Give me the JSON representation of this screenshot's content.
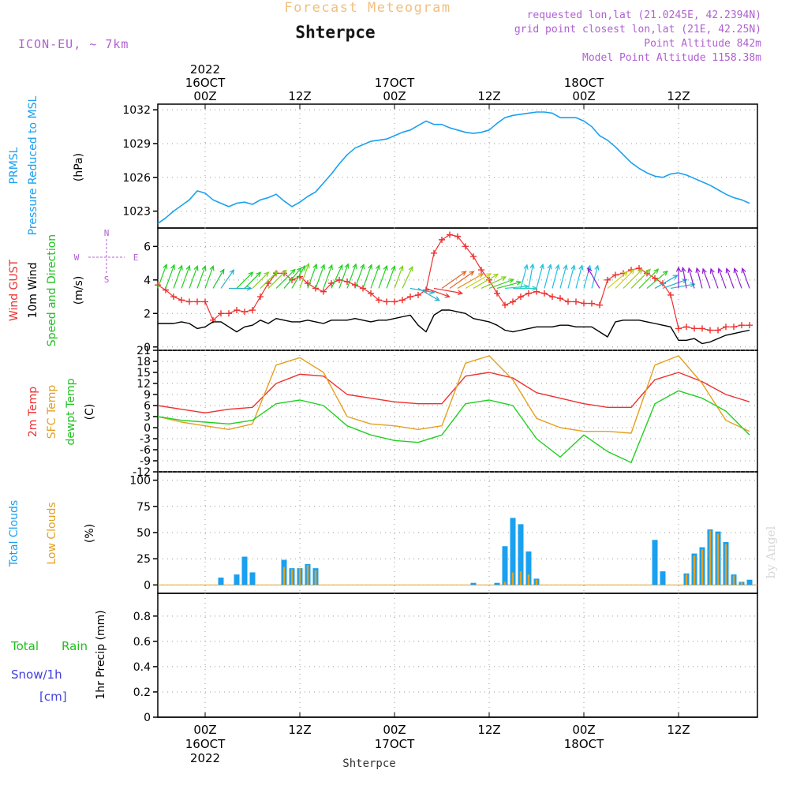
{
  "header": {
    "forecast_title": "Forecast Meteogram",
    "location": "Shterpce",
    "model": "ICON-EU, ~ 7km",
    "requested": "requested lon,lat (21.0245E, 42.2394N)",
    "grid_point": "grid point closest lon,lat (21E, 42.25N)",
    "point_altitude": "Point Altitude 842m",
    "model_altitude": "Model Point Altitude 1158.38m",
    "credit": "by Angel",
    "footer_location": "Shterpce"
  },
  "time_axis": {
    "ticks": [
      {
        "hour": 6,
        "top": [
          "2022",
          "16OCT",
          "00Z"
        ],
        "bottom": [
          "00Z",
          "16OCT",
          "2022"
        ]
      },
      {
        "hour": 18,
        "top": [
          "12Z"
        ],
        "bottom": [
          "12Z"
        ]
      },
      {
        "hour": 30,
        "top": [
          "17OCT",
          "00Z"
        ],
        "bottom": [
          "00Z",
          "17OCT"
        ]
      },
      {
        "hour": 42,
        "top": [
          "12Z"
        ],
        "bottom": [
          "12Z"
        ]
      },
      {
        "hour": 54,
        "top": [
          "18OCT",
          "00Z"
        ],
        "bottom": [
          "00Z",
          "18OCT"
        ]
      },
      {
        "hour": 66,
        "top": [
          "12Z"
        ],
        "bottom": [
          "12Z"
        ]
      }
    ]
  },
  "chart_data": [
    {
      "type": "line",
      "panel": "pressure",
      "labels": {
        "l1": "PRMSL",
        "l2": "Pressure Reduced to MSL",
        "unit": "(hPa)"
      },
      "yticks": [
        1023,
        1026,
        1029,
        1032
      ],
      "ylim": [
        1021.5,
        1032.5
      ],
      "x_hours": [
        0,
        1,
        2,
        3,
        4,
        5,
        6,
        7,
        8,
        9,
        10,
        11,
        12,
        13,
        14,
        15,
        16,
        17,
        18,
        19,
        20,
        21,
        22,
        23,
        24,
        25,
        26,
        27,
        28,
        29,
        30,
        31,
        32,
        33,
        34,
        35,
        36,
        37,
        38,
        39,
        40,
        41,
        42,
        43,
        44,
        45,
        46,
        47,
        48,
        49,
        50,
        51,
        52,
        53,
        54,
        55,
        56,
        57,
        58,
        59,
        60,
        61,
        62,
        63,
        64,
        65,
        66,
        67,
        68,
        69,
        70,
        71,
        72,
        73,
        74,
        75
      ],
      "series": [
        {
          "name": "PRMSL",
          "color": "#1aa0f0",
          "values": [
            1021.9,
            1022.4,
            1023.0,
            1023.5,
            1024.0,
            1024.8,
            1024.6,
            1024.0,
            1023.7,
            1023.4,
            1023.7,
            1023.8,
            1023.6,
            1024.0,
            1024.2,
            1024.5,
            1023.9,
            1023.4,
            1023.8,
            1024.3,
            1024.7,
            1025.5,
            1026.3,
            1027.2,
            1028.0,
            1028.6,
            1028.9,
            1029.2,
            1029.3,
            1029.4,
            1029.7,
            1030.0,
            1030.2,
            1030.6,
            1031.0,
            1030.7,
            1030.7,
            1030.4,
            1030.2,
            1030.0,
            1029.9,
            1030.0,
            1030.2,
            1030.8,
            1031.3,
            1031.5,
            1031.6,
            1031.7,
            1031.8,
            1031.8,
            1031.7,
            1031.3,
            1031.3,
            1031.3,
            1031.0,
            1030.5,
            1029.7,
            1029.3,
            1028.7,
            1028.0,
            1027.3,
            1026.8,
            1026.4,
            1026.1,
            1026.0,
            1026.3,
            1026.4,
            1026.2,
            1025.9,
            1025.6,
            1025.3,
            1024.9,
            1024.5,
            1024.2,
            1024.0,
            1023.7
          ]
        }
      ]
    },
    {
      "type": "line",
      "panel": "wind",
      "labels": {
        "gust": "Wind GUST",
        "wind": "10m Wind",
        "dir": "Speed and Direction",
        "unit": "(m/s)"
      },
      "compass": {
        "n": "N",
        "s": "S",
        "e": "E",
        "w": "W"
      },
      "yticks": [
        0,
        2,
        4,
        6
      ],
      "ylim": [
        -0.2,
        7.1
      ],
      "x_hours": [
        0,
        1,
        2,
        3,
        4,
        5,
        6,
        7,
        8,
        9,
        10,
        11,
        12,
        13,
        14,
        15,
        16,
        17,
        18,
        19,
        20,
        21,
        22,
        23,
        24,
        25,
        26,
        27,
        28,
        29,
        30,
        31,
        32,
        33,
        34,
        35,
        36,
        37,
        38,
        39,
        40,
        41,
        42,
        43,
        44,
        45,
        46,
        47,
        48,
        49,
        50,
        51,
        52,
        53,
        54,
        55,
        56,
        57,
        58,
        59,
        60,
        61,
        62,
        63,
        64,
        65,
        66,
        67,
        68,
        69,
        70,
        71,
        72,
        73,
        74,
        75
      ],
      "series": [
        {
          "name": "Wind GUST",
          "color": "#ee3030",
          "marker": "+",
          "values": [
            3.7,
            3.4,
            3.0,
            2.8,
            2.7,
            2.7,
            2.7,
            1.6,
            2.0,
            2.0,
            2.2,
            2.1,
            2.2,
            3.0,
            3.8,
            4.4,
            4.4,
            4.0,
            4.2,
            3.8,
            3.5,
            3.3,
            3.8,
            4.0,
            3.9,
            3.7,
            3.5,
            3.2,
            2.8,
            2.7,
            2.7,
            2.8,
            3.0,
            3.1,
            3.4,
            5.6,
            6.4,
            6.7,
            6.6,
            6.0,
            5.4,
            4.6,
            4.0,
            3.2,
            2.5,
            2.7,
            3.0,
            3.2,
            3.3,
            3.2,
            3.0,
            2.9,
            2.7,
            2.7,
            2.6,
            2.6,
            2.5,
            4.0,
            4.3,
            4.4,
            4.6,
            4.7,
            4.4,
            4.1,
            3.8,
            3.1,
            1.1,
            1.2,
            1.1,
            1.1,
            1.0,
            1.0,
            1.2,
            1.2,
            1.3,
            1.3
          ]
        },
        {
          "name": "10m Wind",
          "color": "#000000",
          "values": [
            1.4,
            1.4,
            1.4,
            1.5,
            1.4,
            1.1,
            1.2,
            1.5,
            1.5,
            1.2,
            0.9,
            1.2,
            1.3,
            1.6,
            1.4,
            1.7,
            1.6,
            1.5,
            1.5,
            1.6,
            1.5,
            1.4,
            1.6,
            1.6,
            1.6,
            1.7,
            1.6,
            1.5,
            1.6,
            1.6,
            1.7,
            1.8,
            1.9,
            1.3,
            0.9,
            1.9,
            2.2,
            2.2,
            2.1,
            2.0,
            1.7,
            1.6,
            1.5,
            1.3,
            1.0,
            0.9,
            1.0,
            1.1,
            1.2,
            1.2,
            1.2,
            1.3,
            1.3,
            1.2,
            1.2,
            1.2,
            0.9,
            0.6,
            1.5,
            1.6,
            1.6,
            1.6,
            1.5,
            1.4,
            1.3,
            1.2,
            0.4,
            0.4,
            0.5,
            0.2,
            0.3,
            0.5,
            0.7,
            0.8,
            0.9,
            1.0
          ]
        }
      ]
    },
    {
      "type": "line",
      "panel": "temperature",
      "labels": {
        "t2m": "2m Temp",
        "sfc": "SFC Temp",
        "dewpt": "dewpt Temp",
        "unit": "(C)"
      },
      "yticks": [
        -12,
        -9,
        -6,
        -3,
        0,
        3,
        6,
        9,
        12,
        15,
        18,
        21
      ],
      "ylim": [
        -12,
        21
      ],
      "x_hours": [
        0,
        3,
        6,
        9,
        12,
        15,
        18,
        21,
        24,
        27,
        30,
        33,
        36,
        39,
        42,
        45,
        48,
        51,
        54,
        57,
        60,
        63,
        66,
        69,
        72,
        75
      ],
      "series": [
        {
          "name": "2m Temp",
          "color": "#ee3030",
          "values": [
            6.0,
            5.0,
            4.0,
            5.0,
            5.5,
            12.0,
            14.5,
            14.0,
            9.0,
            8.0,
            7.0,
            6.5,
            6.5,
            14.0,
            15.0,
            13.5,
            9.5,
            8.0,
            6.5,
            5.5,
            5.5,
            13.0,
            15.0,
            12.5,
            9.0,
            7.0
          ]
        },
        {
          "name": "SFC Temp",
          "color": "#e3a020",
          "values": [
            3.0,
            1.5,
            0.5,
            -0.5,
            1.0,
            17.0,
            19.0,
            15.0,
            3.0,
            1.0,
            0.5,
            -0.5,
            0.5,
            17.5,
            19.5,
            13.0,
            2.5,
            0.0,
            -1.0,
            -1.0,
            -1.5,
            17.0,
            19.5,
            12.0,
            2.0,
            -1.0
          ]
        },
        {
          "name": "dewpt Temp",
          "color": "#20d020",
          "values": [
            3.0,
            2.0,
            1.5,
            1.0,
            2.0,
            6.5,
            7.5,
            6.0,
            0.5,
            -2.0,
            -3.5,
            -4.0,
            -2.0,
            6.5,
            7.5,
            6.0,
            -3.0,
            -8.0,
            -2.0,
            -6.5,
            -9.5,
            6.5,
            10.0,
            8.0,
            4.5,
            -2.0
          ]
        }
      ]
    },
    {
      "type": "bar",
      "panel": "clouds",
      "labels": {
        "total": "Total Clouds",
        "low": "Low Clouds",
        "unit": "(%)"
      },
      "yticks": [
        0,
        25,
        50,
        75,
        100
      ],
      "ylim": [
        -8,
        108
      ],
      "series": [
        {
          "name": "Total Clouds",
          "color": "#1aa0f0",
          "points": [
            [
              8,
              7
            ],
            [
              10,
              10
            ],
            [
              11,
              27
            ],
            [
              12,
              12
            ],
            [
              16,
              24
            ],
            [
              17,
              16
            ],
            [
              18,
              16
            ],
            [
              19,
              20
            ],
            [
              20,
              16
            ],
            [
              40,
              2
            ],
            [
              43,
              2
            ],
            [
              44,
              37
            ],
            [
              45,
              64
            ],
            [
              46,
              58
            ],
            [
              47,
              32
            ],
            [
              48,
              6
            ],
            [
              63,
              43
            ],
            [
              64,
              13
            ],
            [
              67,
              11
            ],
            [
              68,
              30
            ],
            [
              69,
              36
            ],
            [
              70,
              53
            ],
            [
              71,
              51
            ],
            [
              72,
              41
            ],
            [
              73,
              10
            ],
            [
              74,
              3
            ],
            [
              75,
              5
            ]
          ]
        },
        {
          "name": "Low Clouds",
          "color": "#e3a020",
          "points": [
            [
              16,
              17
            ],
            [
              17,
              15
            ],
            [
              18,
              16
            ],
            [
              19,
              19
            ],
            [
              20,
              14
            ],
            [
              44,
              3
            ],
            [
              45,
              12
            ],
            [
              46,
              13
            ],
            [
              47,
              10
            ],
            [
              48,
              5
            ],
            [
              67,
              10
            ],
            [
              68,
              28
            ],
            [
              69,
              34
            ],
            [
              70,
              52
            ],
            [
              71,
              49
            ],
            [
              72,
              39
            ],
            [
              73,
              9
            ],
            [
              74,
              3
            ]
          ]
        }
      ]
    },
    {
      "type": "line",
      "panel": "precipitation",
      "labels": {
        "total": "Total",
        "rain": "Rain",
        "snow": "Snow/1h",
        "snow_unit": "[cm]",
        "axis": "1hr Precip (mm)"
      },
      "yticks": [
        0,
        0.2,
        0.4,
        0.6,
        0.8
      ],
      "ylim": [
        0,
        0.98
      ],
      "series": []
    }
  ],
  "wind_barbs": {
    "start_hour": 0,
    "hours": [
      0,
      1,
      2,
      3,
      4,
      5,
      6,
      7,
      8,
      9,
      10,
      11,
      12,
      13,
      14,
      15,
      16,
      17,
      18,
      19,
      20,
      21,
      22,
      23,
      24,
      25,
      26,
      27,
      28,
      29,
      30,
      31,
      32,
      33,
      34,
      35,
      36,
      37,
      38,
      39,
      40,
      41,
      42,
      43,
      44,
      45,
      46,
      47,
      48,
      49,
      50,
      51,
      52,
      53,
      54,
      55,
      56,
      57,
      58,
      59,
      60,
      61,
      62,
      63,
      64,
      65,
      66,
      67,
      68,
      69,
      70,
      71,
      72,
      73,
      74,
      75
    ],
    "dirs_deg": [
      200,
      200,
      200,
      200,
      200,
      200,
      200,
      210,
      215,
      270,
      225,
      225,
      225,
      225,
      225,
      225,
      220,
      210,
      200,
      200,
      200,
      200,
      205,
      200,
      200,
      200,
      200,
      200,
      200,
      200,
      200,
      205,
      280,
      300,
      290,
      280,
      235,
      235,
      240,
      240,
      240,
      245,
      250,
      255,
      265,
      270,
      195,
      190,
      195,
      195,
      195,
      195,
      195,
      195,
      195,
      195,
      150,
      230,
      225,
      225,
      225,
      225,
      230,
      240,
      250,
      260,
      180,
      170,
      165,
      165,
      160,
      160,
      160,
      160,
      160,
      160
    ],
    "colors": [
      "#20d020",
      "#20d020",
      "#20d020",
      "#20d020",
      "#20d020",
      "#20d020",
      "#20d020",
      "#20c040",
      "#20b0d0",
      "#20b0d0",
      "#20d020",
      "#20d020",
      "#80d020",
      "#80d020",
      "#80d020",
      "#20d020",
      "#20d020",
      "#20d020",
      "#80d020",
      "#20d020",
      "#20d020",
      "#20d020",
      "#20d020",
      "#20d020",
      "#20d020",
      "#20d020",
      "#20d020",
      "#20d020",
      "#20d020",
      "#20d020",
      "#80d020",
      "#80d020",
      "#20b0d0",
      "#20b0d0",
      "#ee3030",
      "#ee3030",
      "#e06020",
      "#e06020",
      "#e09020",
      "#d0d020",
      "#a0d020",
      "#80d020",
      "#40d020",
      "#20d020",
      "#20d0c0",
      "#20d0c0",
      "#20c0e0",
      "#20c0e0",
      "#20c0e0",
      "#20c0e0",
      "#20c0e0",
      "#20c0e0",
      "#20c0e0",
      "#20c0e0",
      "#20c0e0",
      "#20c0e0",
      "#9020d0",
      "#d0d020",
      "#d0d020",
      "#a0d020",
      "#80d020",
      "#40d020",
      "#20d020",
      "#20b0d0",
      "#20b0d0",
      "#20b0d0",
      "#9020d0",
      "#9020d0",
      "#9020d0",
      "#9020d0",
      "#9020d0",
      "#9020d0",
      "#9020d0",
      "#9020d0",
      "#9020d0",
      "#9020d0"
    ]
  }
}
